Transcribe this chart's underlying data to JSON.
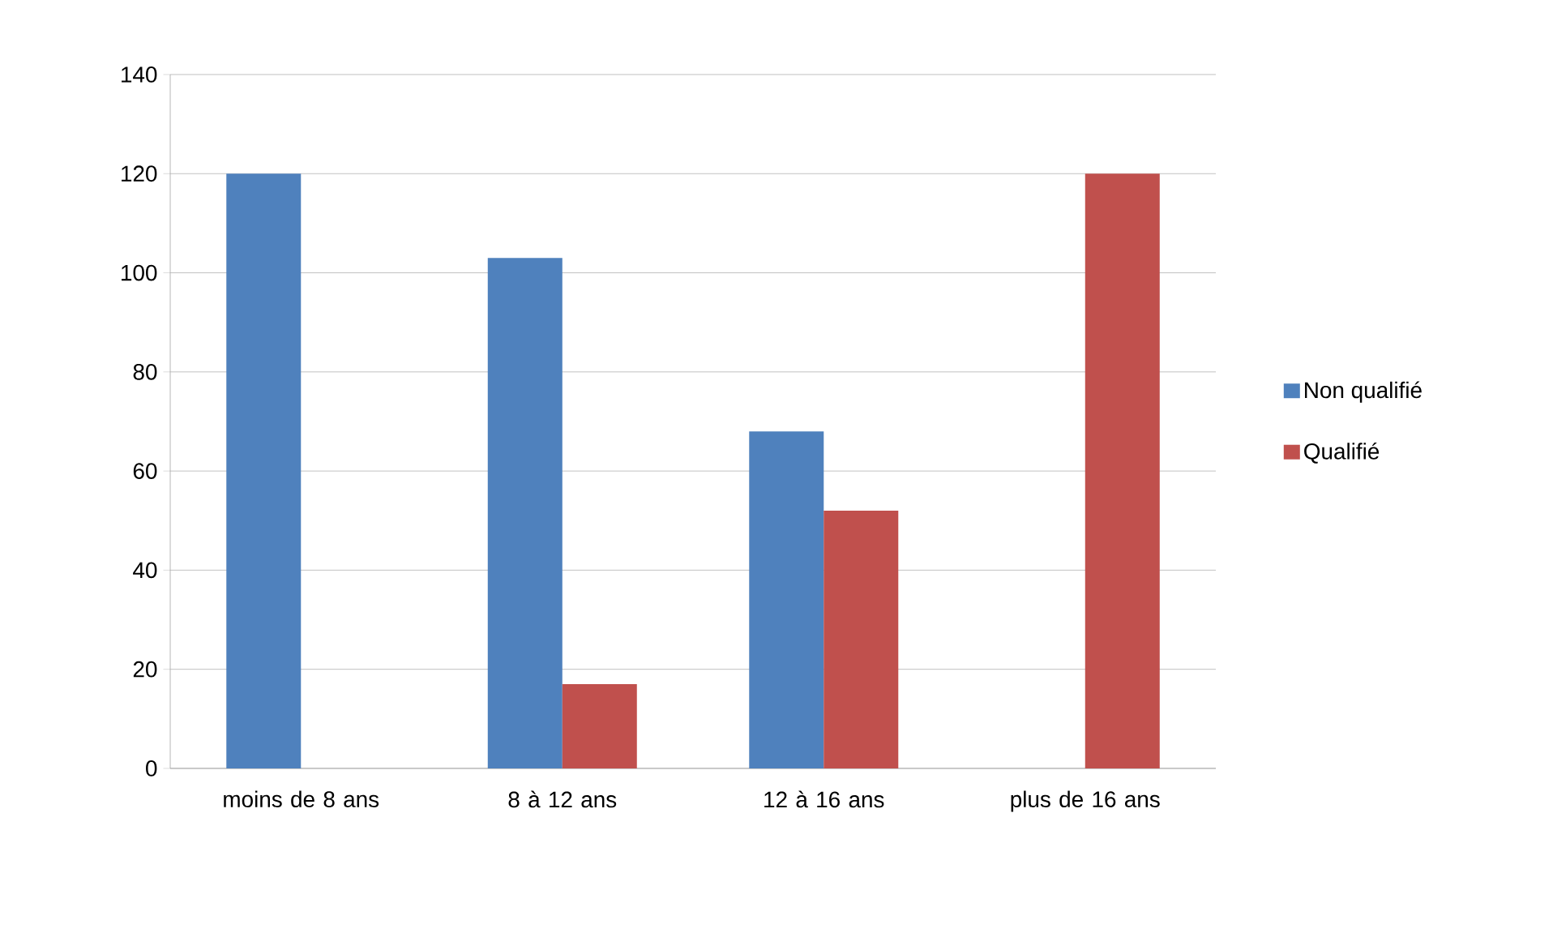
{
  "chart_data": {
    "type": "bar",
    "categories": [
      "moins de 8 ans",
      "8 à 12 ans",
      "12 à 16 ans",
      "plus de 16 ans"
    ],
    "series": [
      {
        "name": "Non qualifié",
        "color": "#4f81bd",
        "values": [
          120,
          103,
          68,
          0
        ]
      },
      {
        "name": "Qualifié",
        "color": "#c0504d",
        "values": [
          0,
          17,
          52,
          120
        ]
      }
    ],
    "ylim": [
      0,
      140
    ],
    "yticks": [
      0,
      20,
      40,
      60,
      80,
      100,
      120,
      140
    ],
    "grid": "y",
    "legend": "right"
  }
}
